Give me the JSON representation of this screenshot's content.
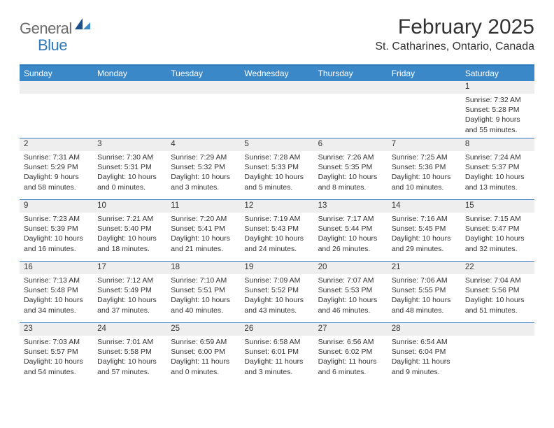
{
  "brand": {
    "text_general": "General",
    "text_blue": "Blue"
  },
  "header": {
    "month_title": "February 2025",
    "location": "St. Catharines, Ontario, Canada"
  },
  "style": {
    "header_bar_color": "#3b88c9",
    "header_border_color": "#2f79bd",
    "day_band_color": "#eeeeee",
    "text_color": "#333333",
    "background_color": "#ffffff",
    "logo_gray": "#6b6b6b",
    "logo_blue": "#2f79bd"
  },
  "weekdays": [
    "Sunday",
    "Monday",
    "Tuesday",
    "Wednesday",
    "Thursday",
    "Friday",
    "Saturday"
  ],
  "weeks": [
    [
      null,
      null,
      null,
      null,
      null,
      null,
      {
        "n": "1",
        "sunrise": "Sunrise: 7:32 AM",
        "sunset": "Sunset: 5:28 PM",
        "daylight": "Daylight: 9 hours and 55 minutes."
      }
    ],
    [
      {
        "n": "2",
        "sunrise": "Sunrise: 7:31 AM",
        "sunset": "Sunset: 5:29 PM",
        "daylight": "Daylight: 9 hours and 58 minutes."
      },
      {
        "n": "3",
        "sunrise": "Sunrise: 7:30 AM",
        "sunset": "Sunset: 5:31 PM",
        "daylight": "Daylight: 10 hours and 0 minutes."
      },
      {
        "n": "4",
        "sunrise": "Sunrise: 7:29 AM",
        "sunset": "Sunset: 5:32 PM",
        "daylight": "Daylight: 10 hours and 3 minutes."
      },
      {
        "n": "5",
        "sunrise": "Sunrise: 7:28 AM",
        "sunset": "Sunset: 5:33 PM",
        "daylight": "Daylight: 10 hours and 5 minutes."
      },
      {
        "n": "6",
        "sunrise": "Sunrise: 7:26 AM",
        "sunset": "Sunset: 5:35 PM",
        "daylight": "Daylight: 10 hours and 8 minutes."
      },
      {
        "n": "7",
        "sunrise": "Sunrise: 7:25 AM",
        "sunset": "Sunset: 5:36 PM",
        "daylight": "Daylight: 10 hours and 10 minutes."
      },
      {
        "n": "8",
        "sunrise": "Sunrise: 7:24 AM",
        "sunset": "Sunset: 5:37 PM",
        "daylight": "Daylight: 10 hours and 13 minutes."
      }
    ],
    [
      {
        "n": "9",
        "sunrise": "Sunrise: 7:23 AM",
        "sunset": "Sunset: 5:39 PM",
        "daylight": "Daylight: 10 hours and 16 minutes."
      },
      {
        "n": "10",
        "sunrise": "Sunrise: 7:21 AM",
        "sunset": "Sunset: 5:40 PM",
        "daylight": "Daylight: 10 hours and 18 minutes."
      },
      {
        "n": "11",
        "sunrise": "Sunrise: 7:20 AM",
        "sunset": "Sunset: 5:41 PM",
        "daylight": "Daylight: 10 hours and 21 minutes."
      },
      {
        "n": "12",
        "sunrise": "Sunrise: 7:19 AM",
        "sunset": "Sunset: 5:43 PM",
        "daylight": "Daylight: 10 hours and 24 minutes."
      },
      {
        "n": "13",
        "sunrise": "Sunrise: 7:17 AM",
        "sunset": "Sunset: 5:44 PM",
        "daylight": "Daylight: 10 hours and 26 minutes."
      },
      {
        "n": "14",
        "sunrise": "Sunrise: 7:16 AM",
        "sunset": "Sunset: 5:45 PM",
        "daylight": "Daylight: 10 hours and 29 minutes."
      },
      {
        "n": "15",
        "sunrise": "Sunrise: 7:15 AM",
        "sunset": "Sunset: 5:47 PM",
        "daylight": "Daylight: 10 hours and 32 minutes."
      }
    ],
    [
      {
        "n": "16",
        "sunrise": "Sunrise: 7:13 AM",
        "sunset": "Sunset: 5:48 PM",
        "daylight": "Daylight: 10 hours and 34 minutes."
      },
      {
        "n": "17",
        "sunrise": "Sunrise: 7:12 AM",
        "sunset": "Sunset: 5:49 PM",
        "daylight": "Daylight: 10 hours and 37 minutes."
      },
      {
        "n": "18",
        "sunrise": "Sunrise: 7:10 AM",
        "sunset": "Sunset: 5:51 PM",
        "daylight": "Daylight: 10 hours and 40 minutes."
      },
      {
        "n": "19",
        "sunrise": "Sunrise: 7:09 AM",
        "sunset": "Sunset: 5:52 PM",
        "daylight": "Daylight: 10 hours and 43 minutes."
      },
      {
        "n": "20",
        "sunrise": "Sunrise: 7:07 AM",
        "sunset": "Sunset: 5:53 PM",
        "daylight": "Daylight: 10 hours and 46 minutes."
      },
      {
        "n": "21",
        "sunrise": "Sunrise: 7:06 AM",
        "sunset": "Sunset: 5:55 PM",
        "daylight": "Daylight: 10 hours and 48 minutes."
      },
      {
        "n": "22",
        "sunrise": "Sunrise: 7:04 AM",
        "sunset": "Sunset: 5:56 PM",
        "daylight": "Daylight: 10 hours and 51 minutes."
      }
    ],
    [
      {
        "n": "23",
        "sunrise": "Sunrise: 7:03 AM",
        "sunset": "Sunset: 5:57 PM",
        "daylight": "Daylight: 10 hours and 54 minutes."
      },
      {
        "n": "24",
        "sunrise": "Sunrise: 7:01 AM",
        "sunset": "Sunset: 5:58 PM",
        "daylight": "Daylight: 10 hours and 57 minutes."
      },
      {
        "n": "25",
        "sunrise": "Sunrise: 6:59 AM",
        "sunset": "Sunset: 6:00 PM",
        "daylight": "Daylight: 11 hours and 0 minutes."
      },
      {
        "n": "26",
        "sunrise": "Sunrise: 6:58 AM",
        "sunset": "Sunset: 6:01 PM",
        "daylight": "Daylight: 11 hours and 3 minutes."
      },
      {
        "n": "27",
        "sunrise": "Sunrise: 6:56 AM",
        "sunset": "Sunset: 6:02 PM",
        "daylight": "Daylight: 11 hours and 6 minutes."
      },
      {
        "n": "28",
        "sunrise": "Sunrise: 6:54 AM",
        "sunset": "Sunset: 6:04 PM",
        "daylight": "Daylight: 11 hours and 9 minutes."
      },
      null
    ]
  ]
}
